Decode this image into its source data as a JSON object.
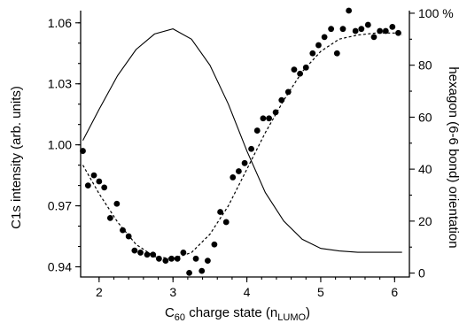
{
  "chart_data": {
    "type": "scatter",
    "xlabel": {
      "pre": "C",
      "pre_sub": "60",
      "mid": " charge state (n",
      "sub": "LUMO",
      "post": ")"
    },
    "ylabel_left": "C1s intensity (arb. units)",
    "ylabel_right": "hexagon (6-6 bond) orientation",
    "xlim": [
      1.75,
      6.2
    ],
    "ylim_left": [
      0.935,
      1.066
    ],
    "ylim_right": [
      -1.5,
      101
    ],
    "x_ticks": [
      2,
      3,
      4,
      5,
      6
    ],
    "x_tick_labels": [
      "2",
      "3",
      "4",
      "5",
      "6"
    ],
    "y_left_ticks": [
      0.94,
      0.97,
      1.0,
      1.03,
      1.06
    ],
    "y_left_tick_labels": [
      "0.94",
      "0.97",
      "1.00",
      "1.03",
      "1.06"
    ],
    "y_right_ticks": [
      0,
      20,
      40,
      60,
      80,
      100
    ],
    "y_right_tick_labels": [
      "0",
      "20",
      "40",
      "60",
      "80",
      "100 %"
    ],
    "series": [
      {
        "type": "scatter",
        "axis": "left",
        "points": [
          [
            1.78,
            0.997
          ],
          [
            1.85,
            0.98
          ],
          [
            1.93,
            0.985
          ],
          [
            2.0,
            0.982
          ],
          [
            2.07,
            0.979
          ],
          [
            2.15,
            0.964
          ],
          [
            2.24,
            0.971
          ],
          [
            2.32,
            0.958
          ],
          [
            2.4,
            0.955
          ],
          [
            2.48,
            0.948
          ],
          [
            2.56,
            0.947
          ],
          [
            2.65,
            0.946
          ],
          [
            2.73,
            0.946
          ],
          [
            2.81,
            0.944
          ],
          [
            2.9,
            0.943
          ],
          [
            2.98,
            0.944
          ],
          [
            3.06,
            0.944
          ],
          [
            3.14,
            0.947
          ],
          [
            3.22,
            0.937
          ],
          [
            3.31,
            0.944
          ],
          [
            3.39,
            0.938
          ],
          [
            3.47,
            0.943
          ],
          [
            3.56,
            0.951
          ],
          [
            3.64,
            0.967
          ],
          [
            3.72,
            0.962
          ],
          [
            3.81,
            0.984
          ],
          [
            3.89,
            0.987
          ],
          [
            3.97,
            0.991
          ],
          [
            4.06,
            0.998
          ],
          [
            4.14,
            1.007
          ],
          [
            4.22,
            1.013
          ],
          [
            4.3,
            1.013
          ],
          [
            4.39,
            1.016
          ],
          [
            4.47,
            1.022
          ],
          [
            4.56,
            1.026
          ],
          [
            4.64,
            1.037
          ],
          [
            4.72,
            1.035
          ],
          [
            4.8,
            1.038
          ],
          [
            4.89,
            1.045
          ],
          [
            4.97,
            1.049
          ],
          [
            5.05,
            1.053
          ],
          [
            5.14,
            1.057
          ],
          [
            5.22,
            1.045
          ],
          [
            5.3,
            1.057
          ],
          [
            5.38,
            1.066
          ],
          [
            5.47,
            1.056
          ],
          [
            5.55,
            1.057
          ],
          [
            5.64,
            1.059
          ],
          [
            5.72,
            1.053
          ],
          [
            5.8,
            1.056
          ],
          [
            5.88,
            1.056
          ],
          [
            5.97,
            1.058
          ],
          [
            6.05,
            1.055
          ]
        ]
      },
      {
        "type": "line",
        "style": "dashed",
        "axis": "left",
        "x": [
          1.78,
          2.0,
          2.25,
          2.5,
          2.75,
          3.0,
          3.25,
          3.5,
          3.75,
          4.0,
          4.25,
          4.5,
          4.75,
          5.0,
          5.25,
          5.5,
          5.75,
          6.0,
          6.1
        ],
        "y": [
          0.99,
          0.976,
          0.962,
          0.951,
          0.945,
          0.944,
          0.947,
          0.956,
          0.97,
          0.988,
          1.006,
          1.022,
          1.036,
          1.046,
          1.052,
          1.054,
          1.055,
          1.055,
          1.054
        ]
      },
      {
        "type": "line",
        "style": "solid",
        "axis": "right",
        "x": [
          1.78,
          2.0,
          2.25,
          2.5,
          2.75,
          3.0,
          3.25,
          3.5,
          3.75,
          4.0,
          4.25,
          4.5,
          4.75,
          5.0,
          5.25,
          5.5,
          5.75,
          6.0,
          6.1
        ],
        "y": [
          51,
          63,
          76,
          86,
          92,
          94,
          90,
          80,
          65,
          47,
          31,
          20,
          13,
          9.5,
          8.5,
          8,
          8,
          8,
          8
        ]
      }
    ]
  }
}
